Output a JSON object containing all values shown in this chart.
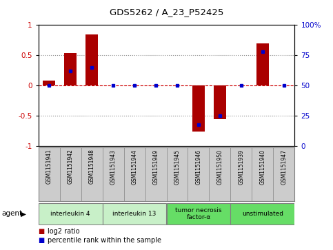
{
  "title": "GDS5262 / A_23_P52425",
  "samples": [
    "GSM1151941",
    "GSM1151942",
    "GSM1151948",
    "GSM1151943",
    "GSM1151944",
    "GSM1151949",
    "GSM1151945",
    "GSM1151946",
    "GSM1151950",
    "GSM1151939",
    "GSM1151940",
    "GSM1151947"
  ],
  "log2_ratio": [
    0.08,
    0.54,
    0.85,
    0.0,
    0.0,
    0.0,
    0.0,
    -0.76,
    -0.55,
    0.0,
    0.7,
    0.0
  ],
  "percentile": [
    50,
    62,
    65,
    50,
    50,
    50,
    50,
    18,
    25,
    50,
    78,
    50
  ],
  "groups": [
    {
      "label": "interleukin 4",
      "indices": [
        0,
        1,
        2
      ],
      "color": "#c8f0c8"
    },
    {
      "label": "interleukin 13",
      "indices": [
        3,
        4,
        5
      ],
      "color": "#c8f0c8"
    },
    {
      "label": "tumor necrosis\nfactor-α",
      "indices": [
        6,
        7,
        8
      ],
      "color": "#66dd66"
    },
    {
      "label": "unstimulated",
      "indices": [
        9,
        10,
        11
      ],
      "color": "#66dd66"
    }
  ],
  "bar_color": "#aa0000",
  "dot_color": "#0000cc",
  "ylim_left": [
    -1.0,
    1.0
  ],
  "ylim_right": [
    0,
    100
  ],
  "yticks_left": [
    -1,
    -0.5,
    0,
    0.5,
    1
  ],
  "ytick_labels_left": [
    "-1",
    "-0.5",
    "0",
    "0.5",
    "1"
  ],
  "yticks_right": [
    0,
    25,
    50,
    75,
    100
  ],
  "ytick_labels_right": [
    "0",
    "25",
    "50",
    "75",
    "100%"
  ],
  "hline_color": "#cc0000",
  "dotted_color": "#888888",
  "agent_label": "agent",
  "legend_log2": "log2 ratio",
  "legend_pct": "percentile rank within the sample",
  "background_color": "#ffffff",
  "sample_bg_color": "#cccccc",
  "tick_label_color_left": "#cc0000",
  "tick_label_color_right": "#0000cc"
}
